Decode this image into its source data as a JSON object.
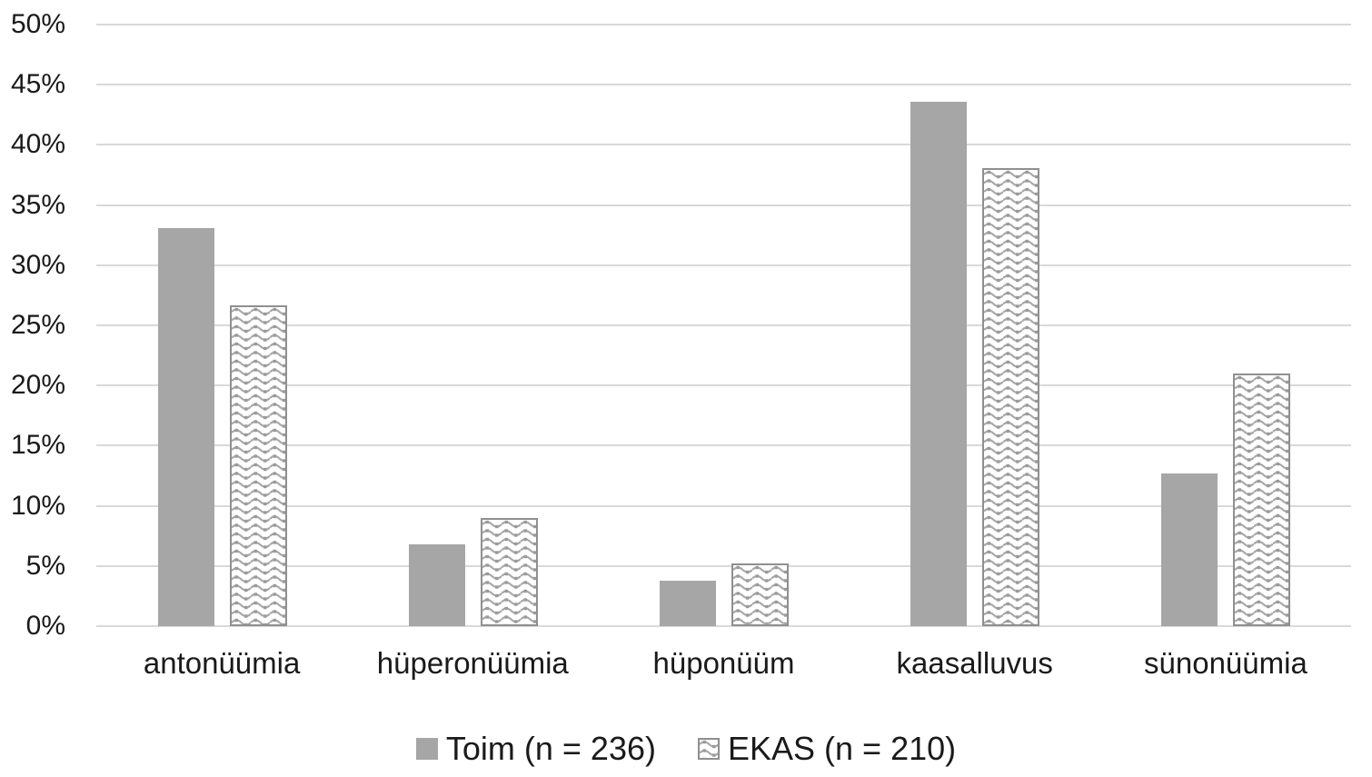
{
  "chart_data": {
    "type": "bar",
    "title": "",
    "xlabel": "",
    "ylabel": "",
    "categories": [
      "antonüümia",
      "hüperonüümia",
      "hüponüüm",
      "kaasalluvus",
      "sünonüümia"
    ],
    "series": [
      {
        "key": "toim",
        "name": "Toim (n = 236)",
        "pattern": "solid",
        "values": [
          33.1,
          6.8,
          3.8,
          43.6,
          12.7
        ]
      },
      {
        "key": "ekas",
        "name": "EKAS (n = 210)",
        "pattern": "wave",
        "values": [
          26.7,
          9.0,
          5.2,
          38.1,
          21.0
        ]
      }
    ],
    "ylim": [
      0,
      50
    ],
    "ytick_step": 5,
    "ytick_labels": [
      "0%",
      "5%",
      "10%",
      "15%",
      "20%",
      "25%",
      "30%",
      "35%",
      "40%",
      "45%",
      "50%"
    ],
    "grid": true,
    "legend_position": "bottom",
    "colors": {
      "bar-solid": "#a6a6a6",
      "pattern-stroke": "#a8a8a8",
      "pattern-dot": "#9a9a9a",
      "pattern-border": "#8f8f8f",
      "gridline": "#d9d9d9",
      "text": "#1a1a1a"
    }
  }
}
